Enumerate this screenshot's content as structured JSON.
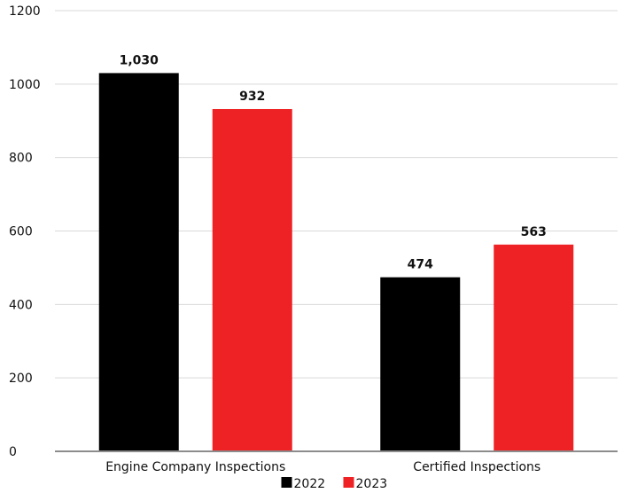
{
  "chart_data": {
    "type": "bar",
    "categories": [
      "Engine Company Inspections",
      "Certified Inspections"
    ],
    "series": [
      {
        "name": "2022",
        "values": [
          1030,
          474
        ],
        "labels": [
          "1,030",
          "474"
        ],
        "color": "#000000"
      },
      {
        "name": "2023",
        "values": [
          932,
          563
        ],
        "labels": [
          "932",
          "563"
        ],
        "color": "#ee2224"
      }
    ],
    "yticks": [
      0,
      200,
      400,
      600,
      800,
      1000,
      1200
    ],
    "ylim": [
      0,
      1200
    ],
    "grid": true,
    "legend": "bottom-center",
    "title": "",
    "xlabel": "",
    "ylabel": ""
  }
}
